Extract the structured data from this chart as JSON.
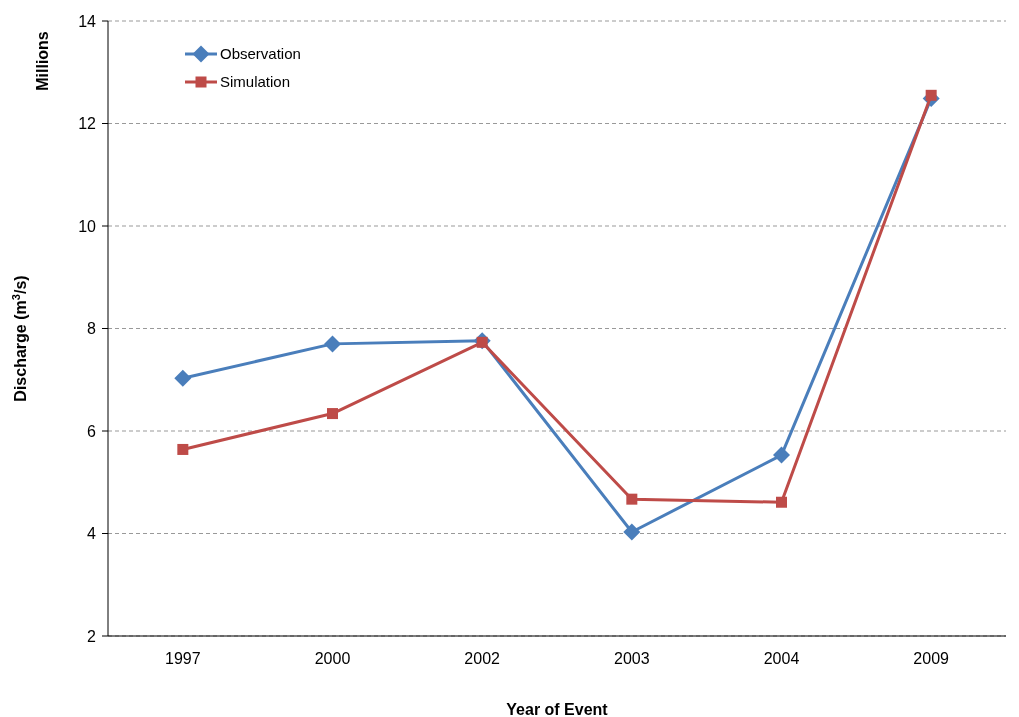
{
  "chart_data": {
    "type": "line",
    "xlabel": "Year of Event",
    "ylabel": "Discharge (m$^{3}$/s)",
    "annotations": [
      "Millions"
    ],
    "categories": [
      "1997",
      "2000",
      "2002",
      "2003",
      "2004",
      "2009"
    ],
    "series": [
      {
        "name": "Observation",
        "color": "#4a7ebb",
        "marker": "diamond",
        "values": [
          7.03,
          7.7,
          7.76,
          4.03,
          5.53,
          12.49
        ]
      },
      {
        "name": "Simulation",
        "color": "#be4b48",
        "marker": "square",
        "values": [
          5.64,
          6.34,
          7.73,
          4.67,
          4.61,
          12.55
        ]
      }
    ],
    "ylim": [
      2,
      14
    ],
    "yticks": [
      2,
      4,
      6,
      8,
      10,
      12,
      14
    ],
    "grid": "y",
    "legend": "top left",
    "line_style": "solid"
  }
}
